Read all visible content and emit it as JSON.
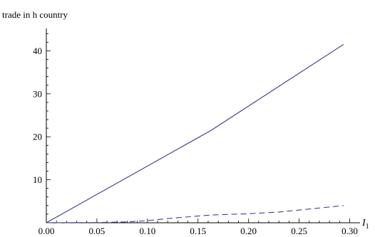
{
  "chart_data": {
    "type": "line",
    "title": "",
    "ylabel": "trade in h country",
    "xlabel": {
      "base": "I",
      "sub": "1"
    },
    "xlim": [
      0.0,
      0.3
    ],
    "ylim": [
      0,
      45
    ],
    "x_ticks": [
      "0.00",
      "0.05",
      "0.10",
      "0.15",
      "0.20",
      "0.25",
      "0.30"
    ],
    "y_ticks": [
      "10",
      "20",
      "30",
      "40"
    ],
    "grid": false,
    "legend": "none",
    "series": [
      {
        "style": "solid",
        "color": "#3b3b8f",
        "x": [
          0.0,
          0.163,
          0.294
        ],
        "values": [
          0.0,
          21.5,
          41.5
        ]
      },
      {
        "style": "dashed",
        "color": "#3b3b8f",
        "x": [
          0.0,
          0.05,
          0.08,
          0.1,
          0.125,
          0.163,
          0.2,
          0.23,
          0.26,
          0.294
        ],
        "values": [
          0.0,
          0.05,
          0.2,
          0.5,
          1.1,
          1.8,
          2.1,
          2.5,
          3.2,
          4.0
        ]
      }
    ]
  }
}
